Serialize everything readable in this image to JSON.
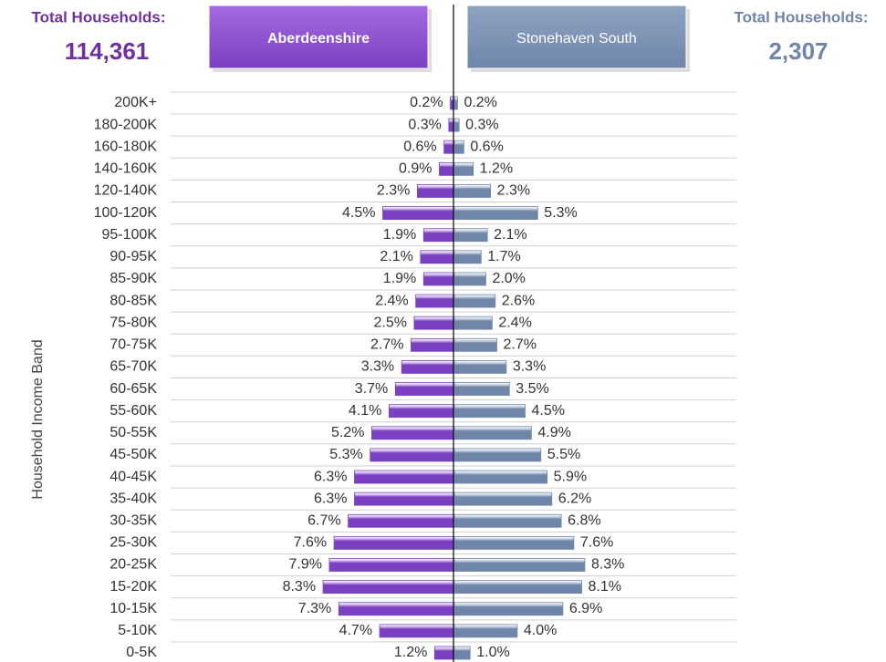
{
  "chart_data": {
    "type": "mirrored-bar",
    "headers": [
      {
        "label": "Total Households:",
        "value": "114,361"
      },
      {
        "label": "Total Households:",
        "value": "2,307"
      }
    ],
    "y_label": "Household Income Band",
    "categories": [
      "200K+",
      "180-200K",
      "160-180K",
      "140-160K",
      "120-140K",
      "100-120K",
      "95-100K",
      "90-95K",
      "85-90K",
      "80-85K",
      "75-80K",
      "70-75K",
      "65-70K",
      "60-65K",
      "55-60K",
      "50-55K",
      "45-50K",
      "40-45K",
      "35-40K",
      "30-35K",
      "25-30K",
      "20-25K",
      "15-20K",
      "10-15K",
      "5-10K",
      "0-5K"
    ],
    "series": [
      {
        "name": "Aberdeenshire",
        "color": "#7b3fc2",
        "values": [
          0.2,
          0.3,
          0.6,
          0.9,
          2.3,
          4.5,
          1.9,
          2.1,
          1.9,
          2.4,
          2.5,
          2.7,
          3.3,
          3.7,
          4.1,
          5.2,
          5.3,
          6.3,
          6.3,
          6.7,
          7.6,
          7.9,
          8.3,
          7.3,
          4.7,
          1.2
        ],
        "value_labels": [
          "0.2%",
          "0.3%",
          "0.6%",
          "0.9%",
          "2.3%",
          "4.5%",
          "1.9%",
          "2.1%",
          "1.9%",
          "2.4%",
          "2.5%",
          "2.7%",
          "3.3%",
          "3.7%",
          "4.1%",
          "5.2%",
          "5.3%",
          "6.3%",
          "6.3%",
          "6.7%",
          "7.6%",
          "7.9%",
          "8.3%",
          "7.3%",
          "4.7%",
          "1.2%"
        ]
      },
      {
        "name": "Stonehaven South",
        "color": "#6f86aa",
        "values": [
          0.2,
          0.3,
          0.6,
          1.2,
          2.3,
          5.3,
          2.1,
          1.7,
          2.0,
          2.6,
          2.4,
          2.7,
          3.3,
          3.5,
          4.5,
          4.9,
          5.5,
          5.9,
          6.2,
          6.8,
          7.6,
          8.3,
          8.1,
          6.9,
          4.0,
          1.0
        ],
        "value_labels": [
          "0.2%",
          "0.3%",
          "0.6%",
          "1.2%",
          "2.3%",
          "5.3%",
          "2.1%",
          "1.7%",
          "2.0%",
          "2.6%",
          "2.4%",
          "2.7%",
          "3.3%",
          "3.5%",
          "4.5%",
          "4.9%",
          "5.5%",
          "5.9%",
          "6.2%",
          "6.8%",
          "7.6%",
          "8.3%",
          "8.1%",
          "6.9%",
          "4.0%",
          "1.0%"
        ]
      }
    ],
    "xlim": [
      0,
      18
    ],
    "grid": true
  }
}
